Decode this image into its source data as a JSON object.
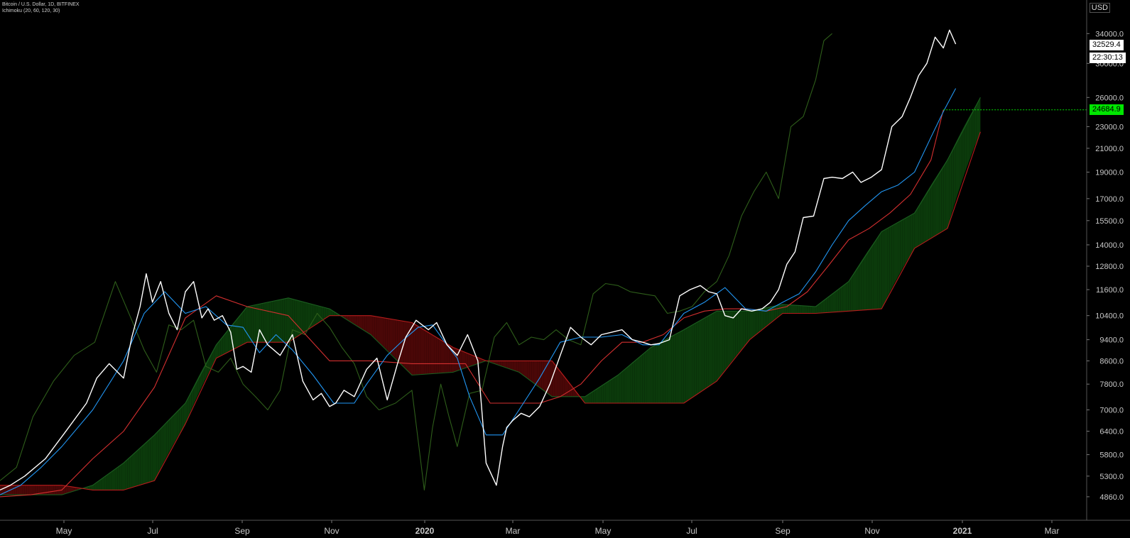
{
  "header": {
    "symbol": "Bitcoin / U.S. Dollar, 1D, BITFINEX",
    "indicator": "Ichimoku (20, 60, 120, 30)",
    "currency": "USD"
  },
  "tags": {
    "last_price": "32529.4",
    "countdown": "22:30:13",
    "kijun_price": "24684.9"
  },
  "colors": {
    "background": "#000000",
    "price": "#ffffff",
    "tenkan": "#2196f3",
    "kijun": "#d32f2f",
    "chikou": "#2e5e1a",
    "span_a": "#1b5e20",
    "span_b": "#b71c1c",
    "cloud_bull": "#0b3a0b",
    "cloud_bear": "#4a0707",
    "axis_text": "#c8c8c8",
    "kijun_tag": "#00e600"
  },
  "chart_data": {
    "type": "line",
    "title": "Bitcoin / U.S. Dollar, 1D, BITFINEX",
    "y_scale": "log",
    "ylim": [
      4550,
      38000
    ],
    "x_ticks": [
      "May",
      "Jul",
      "Sep",
      "Nov",
      "2020",
      "Mar",
      "May",
      "Jul",
      "Sep",
      "Nov",
      "2021",
      "Mar"
    ],
    "y_ticks": [
      "34000.0",
      "30000.0",
      "26000.0",
      "23000.0",
      "21000.0",
      "19000.0",
      "17000.0",
      "15500.0",
      "14000.0",
      "12800.0",
      "11600.0",
      "10400.0",
      "9400.0",
      "8600.0",
      "7800.0",
      "7000.0",
      "6400.0",
      "5800.0",
      "5300.0",
      "4860.0"
    ],
    "series": [
      {
        "name": "price",
        "x": [
          0,
          5,
          12,
          22,
          32,
          42,
          47,
          53,
          60,
          64,
          68,
          71,
          74,
          78,
          82,
          86,
          90,
          94,
          98,
          101,
          104,
          108,
          112,
          115,
          118,
          122,
          126,
          130,
          136,
          142,
          147,
          152,
          156,
          160,
          163,
          167,
          172,
          178,
          183,
          188,
          193,
          197,
          202,
          208,
          212,
          217,
          222,
          227,
          232,
          236,
          241,
          244,
          246,
          249,
          253,
          257,
          262,
          267,
          272,
          277,
          282,
          287,
          292,
          297,
          302,
          307,
          312,
          316,
          320,
          325,
          330,
          335,
          340,
          344,
          348,
          352,
          356,
          360,
          365,
          370,
          374,
          378,
          382,
          386,
          390,
          395,
          400,
          404,
          409,
          414,
          418,
          423,
          428,
          433,
          438,
          442,
          446,
          450,
          454,
          458,
          461,
          464
        ],
        "y": [
          5000,
          5100,
          5300,
          5700,
          6400,
          7200,
          8000,
          8500,
          8000,
          9500,
          10800,
          12400,
          11000,
          12000,
          10500,
          9800,
          11500,
          12000,
          10300,
          10700,
          10200,
          10400,
          9700,
          8300,
          8400,
          8200,
          9800,
          9200,
          8800,
          9600,
          7900,
          7300,
          7500,
          7100,
          7200,
          7600,
          7400,
          8300,
          8700,
          7300,
          8500,
          9500,
          10200,
          9800,
          10100,
          9200,
          8800,
          9600,
          8600,
          5600,
          5100,
          6000,
          6500,
          6700,
          6900,
          6800,
          7100,
          7800,
          8800,
          9900,
          9500,
          9200,
          9600,
          9700,
          9800,
          9400,
          9300,
          9200,
          9250,
          9400,
          11300,
          11600,
          11800,
          11500,
          11400,
          10400,
          10300,
          10700,
          10600,
          10700,
          11000,
          11600,
          12900,
          13600,
          15700,
          15800,
          18500,
          18600,
          18500,
          19000,
          18200,
          18600,
          19200,
          23000,
          24000,
          26000,
          28500,
          30000,
          33500,
          32000,
          34500,
          32529
        ]
      },
      {
        "name": "tenkan",
        "x": [
          0,
          10,
          20,
          30,
          45,
          60,
          70,
          80,
          90,
          100,
          110,
          118,
          126,
          134,
          142,
          152,
          162,
          172,
          178,
          188,
          196,
          203,
          210,
          216,
          222,
          228,
          236,
          244,
          252,
          262,
          272,
          282,
          292,
          302,
          312,
          320,
          332,
          342,
          352,
          362,
          372,
          380,
          388,
          396,
          404,
          412,
          420,
          428,
          436,
          444,
          452,
          458,
          464
        ],
        "y": [
          4900,
          5100,
          5500,
          6000,
          7000,
          8600,
          10500,
          11500,
          10500,
          10800,
          10000,
          9900,
          8900,
          9600,
          9000,
          8100,
          7200,
          7200,
          7800,
          8800,
          9400,
          9900,
          10000,
          9300,
          8700,
          7400,
          6300,
          6300,
          7000,
          8000,
          9300,
          9500,
          9500,
          9600,
          9200,
          9200,
          10500,
          11000,
          11700,
          10700,
          10600,
          11000,
          11400,
          12500,
          14000,
          15500,
          16500,
          17500,
          18000,
          19000,
          22000,
          24500,
          27000
        ]
      },
      {
        "name": "kijun",
        "x": [
          0,
          15,
          30,
          45,
          60,
          75,
          90,
          105,
          120,
          140,
          160,
          180,
          200,
          212,
          226,
          238,
          250,
          262,
          272,
          282,
          292,
          302,
          312,
          322,
          332,
          342,
          352,
          362,
          372,
          382,
          392,
          402,
          412,
          422,
          432,
          442,
          452,
          458
        ],
        "y": [
          4860,
          4900,
          5000,
          5700,
          6400,
          7700,
          10300,
          11300,
          10800,
          10400,
          8600,
          8600,
          8500,
          8500,
          8500,
          7200,
          7200,
          7200,
          7400,
          7800,
          8600,
          9300,
          9300,
          9600,
          10300,
          10600,
          10700,
          10700,
          10600,
          10800,
          11500,
          12800,
          14300,
          15000,
          16000,
          17300,
          20000,
          24684.9
        ]
      },
      {
        "name": "span_a",
        "x": [
          0,
          30,
          45,
          60,
          75,
          90,
          105,
          120,
          140,
          160,
          180,
          200,
          220,
          236,
          252,
          268,
          284,
          300,
          316,
          332,
          348,
          364,
          380,
          396,
          412,
          428,
          444,
          460,
          476
        ],
        "y": [
          4900,
          4900,
          5100,
          5600,
          6300,
          7200,
          9200,
          10800,
          11200,
          10700,
          9600,
          8100,
          8200,
          8600,
          8200,
          7400,
          7400,
          8100,
          9100,
          9800,
          10600,
          10600,
          10900,
          10800,
          12000,
          14800,
          16000,
          20000,
          26000
        ]
      },
      {
        "name": "span_b",
        "x": [
          0,
          30,
          45,
          60,
          75,
          90,
          105,
          120,
          140,
          160,
          180,
          200,
          220,
          236,
          252,
          268,
          284,
          300,
          316,
          332,
          348,
          364,
          380,
          396,
          412,
          428,
          444,
          460,
          476
        ],
        "y": [
          5100,
          5100,
          5000,
          5000,
          5200,
          6600,
          8700,
          9300,
          9300,
          10400,
          10400,
          10100,
          9100,
          8600,
          8600,
          8600,
          7200,
          7200,
          7200,
          7200,
          7900,
          9400,
          10500,
          10500,
          10600,
          10700,
          13800,
          15000,
          22500
        ]
      },
      {
        "name": "chikou",
        "x": [
          0,
          8,
          16,
          26,
          36,
          46,
          56,
          64,
          70,
          76,
          82,
          88,
          94,
          100,
          106,
          112,
          118,
          124,
          130,
          136,
          142,
          148,
          154,
          160,
          166,
          172,
          178,
          184,
          192,
          200,
          206,
          210,
          214,
          218,
          222,
          228,
          234,
          240,
          246,
          252,
          258,
          264,
          270,
          276,
          282,
          288,
          294,
          300,
          306,
          312,
          318,
          324,
          330,
          336,
          342,
          348,
          354,
          360,
          366,
          372,
          378,
          384,
          390,
          396,
          400,
          404
        ],
        "y": [
          5200,
          5500,
          6800,
          7900,
          8800,
          9300,
          12000,
          10200,
          9000,
          8200,
          10000,
          9800,
          10200,
          8400,
          8200,
          8700,
          7800,
          7400,
          7000,
          7600,
          9800,
          9600,
          10500,
          9900,
          9100,
          8500,
          7400,
          7000,
          7200,
          7600,
          5000,
          6500,
          7800,
          6800,
          6000,
          7500,
          7600,
          9500,
          10100,
          9200,
          9500,
          9400,
          9800,
          9400,
          9200,
          11400,
          11900,
          11800,
          11500,
          11400,
          11300,
          10500,
          10600,
          10800,
          11500,
          12000,
          13400,
          15800,
          17500,
          19000,
          17000,
          23000,
          24000,
          28000,
          33000,
          34000
        ]
      }
    ]
  }
}
